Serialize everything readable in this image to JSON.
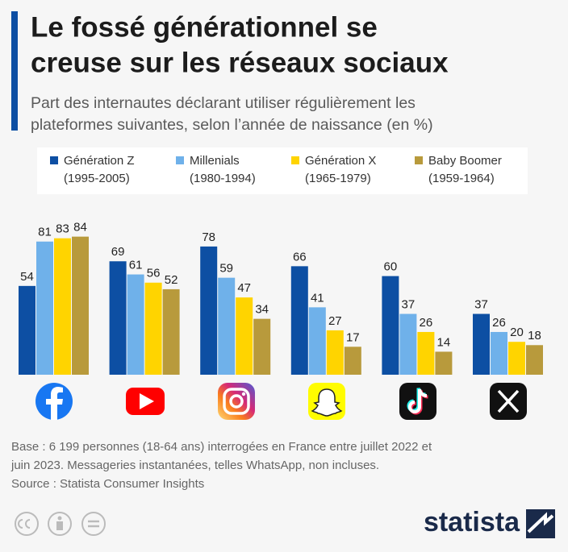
{
  "chart_data": {
    "type": "bar",
    "title": [
      "Le fossé générationnel se",
      "creuse sur les réseaux sociaux"
    ],
    "subtitle": [
      "Part des internautes déclarant utiliser régulièrement les",
      "plateformes suivantes, selon l’année de naissance (en %)"
    ],
    "categories": [
      null,
      null,
      null,
      null,
      null,
      null
    ],
    "series": [
      {
        "name": "Génération Z",
        "period": "(1995-2005)",
        "color": "#0d4fa3",
        "values": [
          54,
          69,
          78,
          66,
          60,
          37
        ]
      },
      {
        "name": "Millenials",
        "period": "(1980-1994)",
        "color": "#6fb1ea",
        "values": [
          81,
          61,
          59,
          41,
          37,
          26
        ]
      },
      {
        "name": "Génération X",
        "period": "(1965-1979)",
        "color": "#ffd400",
        "values": [
          83,
          56,
          47,
          27,
          26,
          20
        ]
      },
      {
        "name": "Baby Boomer",
        "period": "(1959-1964)",
        "color": "#b89a3c",
        "values": [
          84,
          52,
          34,
          17,
          14,
          18
        ]
      }
    ],
    "note": [
      "Base : 6 199 personnes (18-64 ans) interrogées en France entre juillet 2022 et",
      "juin 2023. Messageries instantanées, telles WhatsApp, non incluses."
    ],
    "source": "Source : Statista Consumer Insights",
    "brand": "statista"
  }
}
